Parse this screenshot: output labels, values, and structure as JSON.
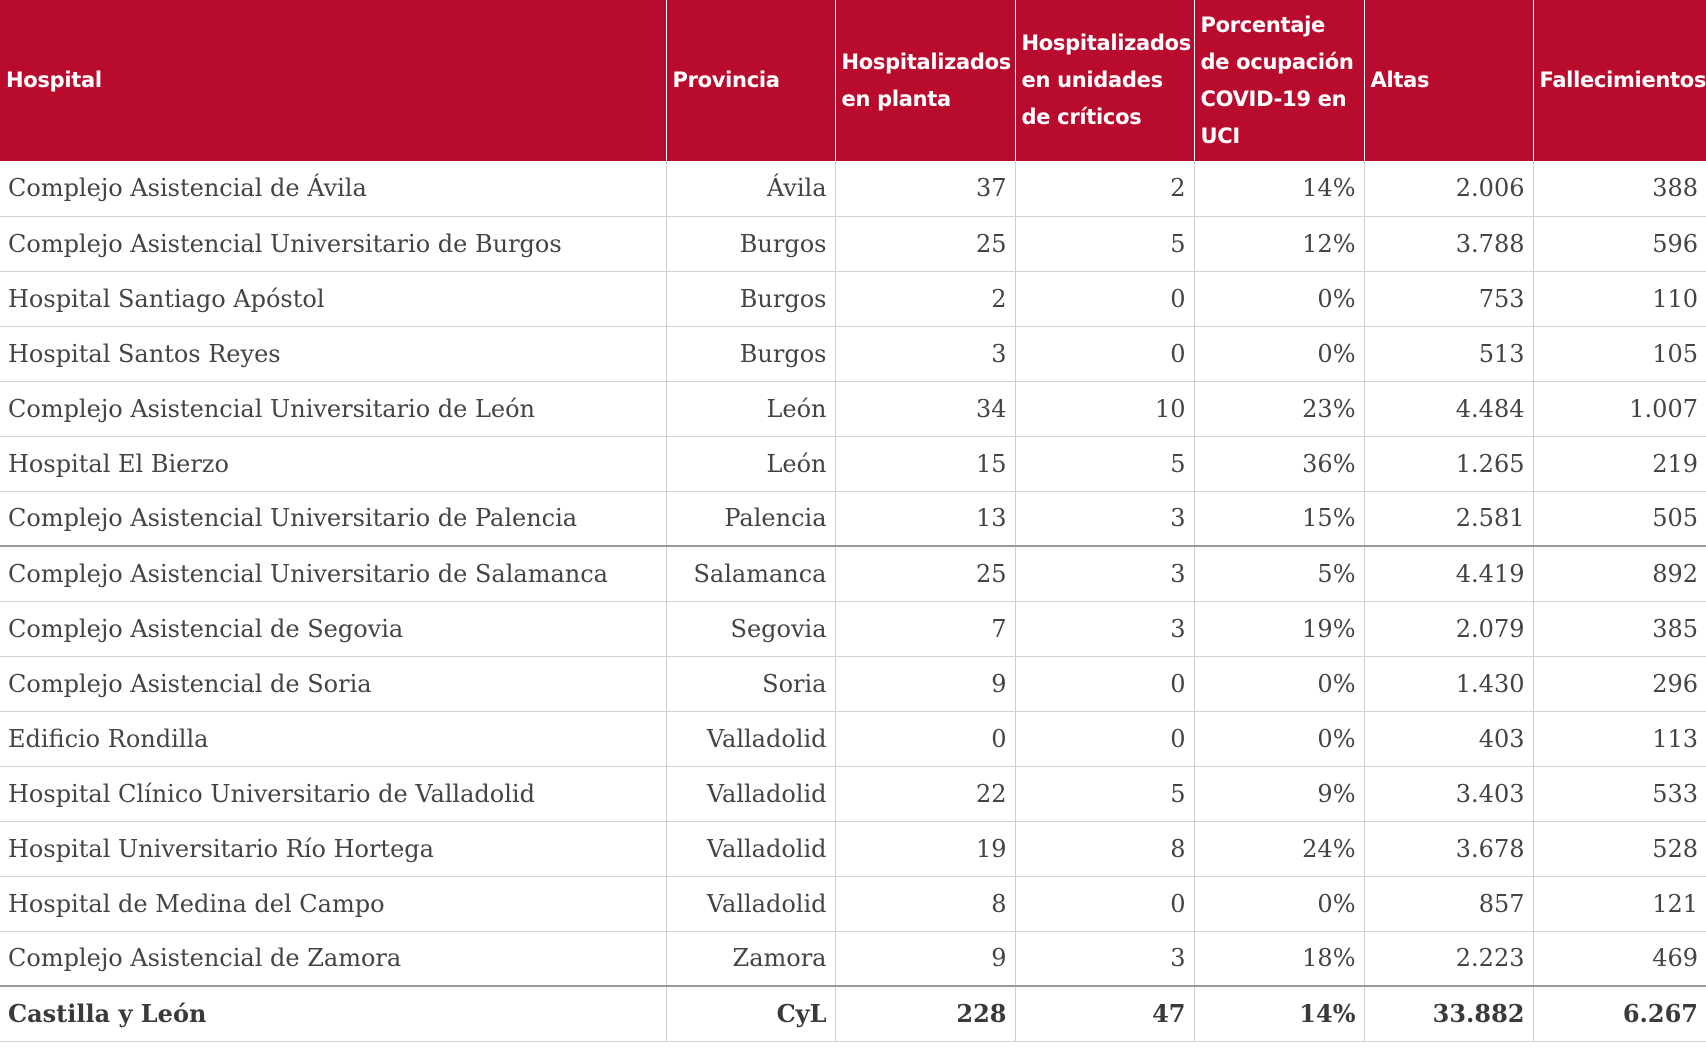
{
  "table": {
    "headers": [
      "Hospital",
      "Provincia",
      "Hospitalizados en planta",
      "Hospitalizados en unidades de críticos",
      "Porcentaje de ocupación COVID-19 en UCI",
      "Altas",
      "Fallecimientos"
    ],
    "rows": [
      [
        "Complejo Asistencial de Ávila",
        "Ávila",
        "37",
        "2",
        "14%",
        "2.006",
        "388"
      ],
      [
        "Complejo Asistencial Universitario de Burgos",
        "Burgos",
        "25",
        "5",
        "12%",
        "3.788",
        "596"
      ],
      [
        "Hospital Santiago Apóstol",
        "Burgos",
        "2",
        "0",
        "0%",
        "753",
        "110"
      ],
      [
        "Hospital Santos Reyes",
        "Burgos",
        "3",
        "0",
        "0%",
        "513",
        "105"
      ],
      [
        "Complejo Asistencial Universitario de León",
        "León",
        "34",
        "10",
        "23%",
        "4.484",
        "1.007"
      ],
      [
        "Hospital El Bierzo",
        "León",
        "15",
        "5",
        "36%",
        "1.265",
        "219"
      ],
      [
        "Complejo Asistencial Universitario de Palencia",
        "Palencia",
        "13",
        "3",
        "15%",
        "2.581",
        "505"
      ],
      [
        "Complejo Asistencial Universitario de Salamanca",
        "Salamanca",
        "25",
        "3",
        "5%",
        "4.419",
        "892"
      ],
      [
        "Complejo Asistencial de Segovia",
        "Segovia",
        "7",
        "3",
        "19%",
        "2.079",
        "385"
      ],
      [
        "Complejo Asistencial de Soria",
        "Soria",
        "9",
        "0",
        "0%",
        "1.430",
        "296"
      ],
      [
        "Edificio Rondilla",
        "Valladolid",
        "0",
        "0",
        "0%",
        "403",
        "113"
      ],
      [
        "Hospital Clínico Universitario de Valladolid",
        "Valladolid",
        "22",
        "5",
        "9%",
        "3.403",
        "533"
      ],
      [
        "Hospital Universitario Río Hortega",
        "Valladolid",
        "19",
        "8",
        "24%",
        "3.678",
        "528"
      ],
      [
        "Hospital de Medina del Campo",
        "Valladolid",
        "8",
        "0",
        "0%",
        "857",
        "121"
      ],
      [
        "Complejo Asistencial de Zamora",
        "Zamora",
        "9",
        "3",
        "18%",
        "2.223",
        "469"
      ]
    ],
    "total": [
      "Castilla y León",
      "CyL",
      "228",
      "47",
      "14%",
      "33.882",
      "6.267"
    ]
  },
  "colors": {
    "header_bg": "#b90b2e",
    "header_text": "#ffffff",
    "cell_text": "#444444",
    "grid": "#cfcfcf"
  }
}
